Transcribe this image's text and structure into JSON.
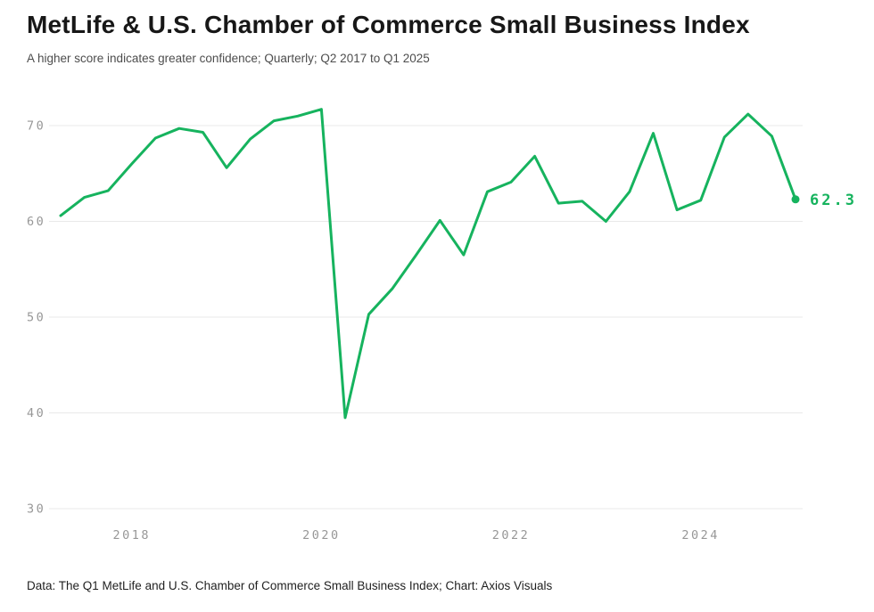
{
  "header": {
    "title": "MetLife & U.S. Chamber of Commerce Small Business Index",
    "subtitle": "A higher score indicates greater confidence; Quarterly; Q2 2017 to Q1 2025"
  },
  "footer": {
    "source": "Data: The Q1 MetLife and U.S. Chamber of Commerce Small Business Index; Chart: Axios Visuals"
  },
  "chart_data": {
    "type": "line",
    "title": "MetLife & U.S. Chamber of Commerce Small Business Index",
    "subtitle": "A higher score indicates greater confidence; Quarterly; Q2 2017 to Q1 2025",
    "x": [
      "Q2 2017",
      "Q3 2017",
      "Q4 2017",
      "Q1 2018",
      "Q2 2018",
      "Q3 2018",
      "Q4 2018",
      "Q1 2019",
      "Q2 2019",
      "Q3 2019",
      "Q4 2019",
      "Q1 2020",
      "Q2 2020",
      "Q3 2020",
      "Q4 2020",
      "Q1 2021",
      "Q2 2021",
      "Q3 2021",
      "Q4 2021",
      "Q1 2022",
      "Q2 2022",
      "Q3 2022",
      "Q4 2022",
      "Q1 2023",
      "Q2 2023",
      "Q3 2023",
      "Q4 2023",
      "Q1 2024",
      "Q2 2024",
      "Q3 2024",
      "Q4 2024",
      "Q1 2025"
    ],
    "values": [
      60.6,
      62.5,
      63.2,
      66.0,
      68.7,
      69.7,
      69.3,
      65.6,
      68.6,
      70.5,
      71.0,
      71.7,
      39.5,
      50.3,
      53.0,
      56.5,
      60.1,
      56.5,
      63.1,
      64.1,
      66.8,
      61.9,
      62.1,
      60.0,
      63.1,
      69.2,
      61.2,
      62.2,
      68.8,
      71.2,
      68.9,
      62.3
    ],
    "end_label": "62.3",
    "ylim": [
      30,
      72
    ],
    "y_ticks": [
      30,
      40,
      50,
      60,
      70
    ],
    "x_ticks": [
      {
        "label": "2018",
        "index": 3
      },
      {
        "label": "2020",
        "index": 11
      },
      {
        "label": "2022",
        "index": 19
      },
      {
        "label": "2024",
        "index": 27
      }
    ],
    "grid": "horizontal",
    "legend": "none",
    "line_color": "#16b35e",
    "grid_color": "#e9e9e9",
    "tick_color": "#979797"
  }
}
